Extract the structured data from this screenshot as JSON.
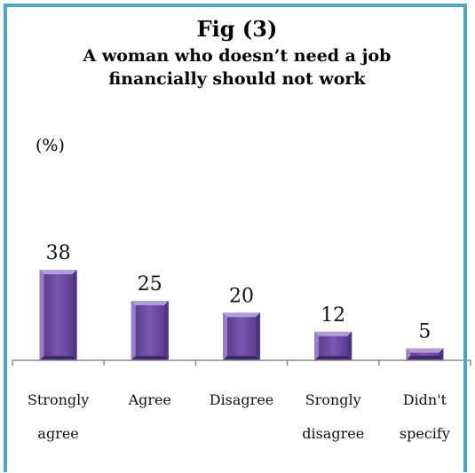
{
  "figure": {
    "number": "Fig (3)",
    "title": "A woman who doesn’t need a job financially should not work",
    "unit": "(%)"
  },
  "chart_data": {
    "type": "bar",
    "categories": [
      [
        "Strongly",
        "agree"
      ],
      [
        "Agree"
      ],
      [
        "Disagree"
      ],
      [
        "Srongly",
        "disagree"
      ],
      [
        "Didn't",
        "specify"
      ]
    ],
    "values": [
      38,
      25,
      20,
      12,
      5
    ],
    "ylabel": "(%)",
    "bar_color": "#7a56b0",
    "bar_highlight": "#b49be0",
    "bar_shadow": "#3d2a66",
    "axis_color": "#8c8c8c",
    "frame_color": "#4aa6c6",
    "grid": false,
    "legend": "none"
  }
}
